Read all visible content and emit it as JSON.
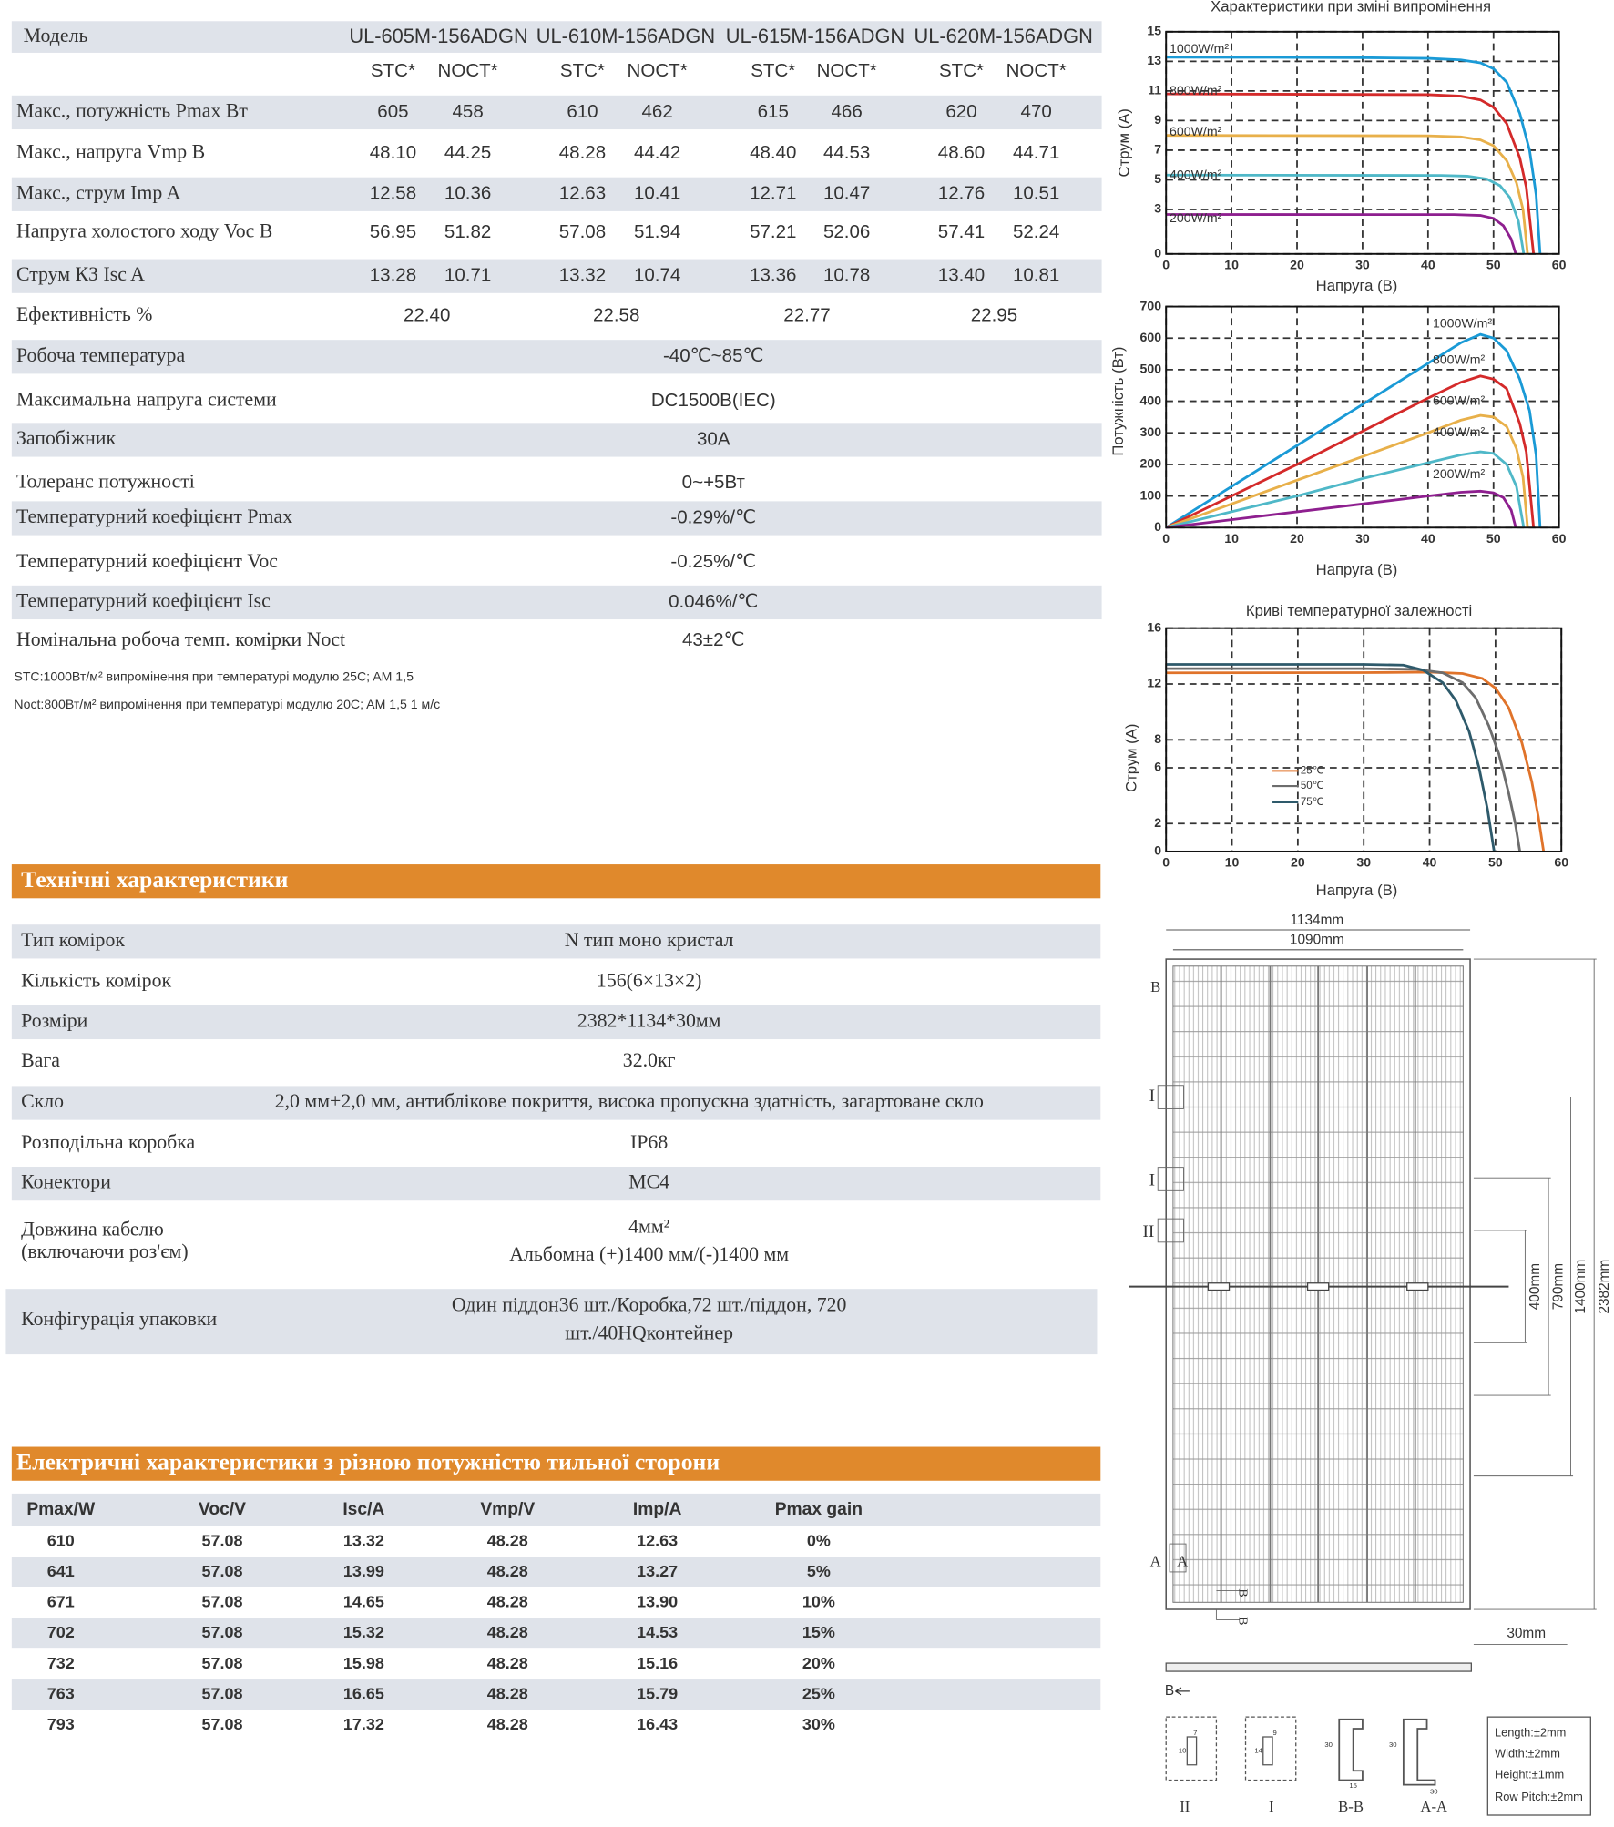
{
  "specs": {
    "header": [
      "Модель",
      "UL-605M-156ADGN",
      "UL-610M-156ADGN",
      "UL-615M-156ADGN",
      "UL-620M-156ADGN"
    ],
    "subheader": [
      "STC*",
      "NOCT*",
      "STC*",
      "NOCT*",
      "STC*",
      "NOCT*",
      "STC*",
      "NOCT*"
    ],
    "rows": [
      {
        "label": "Макс., потужність Pmax Вт",
        "values": [
          "605",
          "458",
          "610",
          "462",
          "615",
          "466",
          "620",
          "470"
        ]
      },
      {
        "label": "Макс., напруга Vmp В",
        "values": [
          "48.10",
          "44.25",
          "48.28",
          "44.42",
          "48.40",
          "44.53",
          "48.60",
          "44.71"
        ]
      },
      {
        "label": "Макс., струм Imp A",
        "values": [
          "12.58",
          "10.36",
          "12.63",
          "10.41",
          "12.71",
          "10.47",
          "12.76",
          "10.51"
        ]
      },
      {
        "label": "Напруга холостого ходу Voc В",
        "values": [
          "56.95",
          "51.82",
          "57.08",
          "51.94",
          "57.21",
          "52.06",
          "57.41",
          "52.24"
        ]
      },
      {
        "label": "Струм КЗ Isc  A",
        "values": [
          "13.28",
          "10.71",
          "13.32",
          "10.74",
          "13.36",
          "10.78",
          "13.40",
          "10.81"
        ]
      },
      {
        "label": "Ефективність   %",
        "values": [
          "22.40",
          "22.58",
          "22.77",
          "22.95"
        ]
      },
      {
        "label": "Робоча температура",
        "values": [
          "-40℃~85℃"
        ]
      },
      {
        "label": "Максимальна напруга системи",
        "values": [
          "DC1500В(IEC)"
        ]
      },
      {
        "label": "Запобіжник",
        "values": [
          "30А"
        ]
      },
      {
        "label": "Толеранс потужності",
        "values": [
          "0~+5Вт"
        ]
      },
      {
        "label": "Температурний коефіцієнт Pmax",
        "values": [
          "-0.29%/℃"
        ]
      },
      {
        "label": "Температурний коефіцієнт Voc",
        "values": [
          "-0.25%/℃"
        ]
      },
      {
        "label": "Температурний коефіцієнт Isc",
        "values": [
          "0.046%/℃"
        ]
      },
      {
        "label": "Номінальна робоча темп. комірки Noct",
        "values": [
          "43±2℃"
        ]
      }
    ],
    "notes": [
      "STC:1000Вт/м² випромінення при температурі модулю 25C; AM 1,5",
      "Noct:800Вт/м² випромінення при температурі модулю 20C; AM 1,5 1 м/с"
    ]
  },
  "tech": {
    "title": "Технічні характеристики",
    "rows": [
      {
        "label": [
          "Тип комірок"
        ],
        "value": [
          "N тип моно кристал"
        ]
      },
      {
        "label": [
          "Кількість комірок"
        ],
        "value": [
          "156(6×13×2)"
        ]
      },
      {
        "label": [
          "Розміри"
        ],
        "value": [
          "2382*1134*30мм"
        ]
      },
      {
        "label": [
          "Вага"
        ],
        "value": [
          "32.0кг"
        ]
      },
      {
        "label": [
          "Скло"
        ],
        "value": [
          "2,0 мм+2,0 мм, антиблікове покриття, висока пропускна здатність, загартоване скло"
        ]
      },
      {
        "label": [
          "Розподільна коробка"
        ],
        "value": [
          "IP68"
        ]
      },
      {
        "label": [
          "Конектори"
        ],
        "value": [
          "MC4"
        ]
      },
      {
        "label": [
          "Довжина кабелю",
          "(включаючи роз'єм)"
        ],
        "value": [
          "4мм²",
          "Альбомна (+)1400 мм/(-)1400 мм"
        ]
      },
      {
        "label": [
          "Конфігурація упаковки"
        ],
        "value": [
          "Один піддон36 шт./Коробка,72 шт./піддон, 720",
          "шт./40HQконтейнер"
        ]
      }
    ]
  },
  "electric": {
    "title": "Електричні характеристики з  різною потужністю тильної сторони",
    "columns": [
      "Pmax/W",
      "Voc/V",
      "Isc/A",
      "Vmp/V",
      "Imp/A",
      "Pmax gain"
    ],
    "rows": [
      [
        "610",
        "57.08",
        "13.32",
        "48.28",
        "12.63",
        "0%"
      ],
      [
        "641",
        "57.08",
        "13.99",
        "48.28",
        "13.27",
        "5%"
      ],
      [
        "671",
        "57.08",
        "14.65",
        "48.28",
        "13.90",
        "10%"
      ],
      [
        "702",
        "57.08",
        "15.32",
        "48.28",
        "14.53",
        "15%"
      ],
      [
        "732",
        "57.08",
        "15.98",
        "48.28",
        "15.16",
        "20%"
      ],
      [
        "763",
        "57.08",
        "16.65",
        "48.28",
        "15.79",
        "25%"
      ],
      [
        "793",
        "57.08",
        "17.32",
        "48.28",
        "16.43",
        "30%"
      ]
    ]
  },
  "charts": [
    {
      "type": "line",
      "title": "Характеристики при зміні випромінення",
      "x_label": "Напруга (В)",
      "y_label": "Струм (A)",
      "xlim": [
        0,
        60
      ],
      "xticks": [
        0,
        10,
        20,
        30,
        40,
        50,
        60
      ],
      "ylim": [
        0,
        15
      ],
      "yticks": [
        0,
        3,
        5,
        7,
        9,
        11,
        13,
        15
      ],
      "grid": true,
      "series": [
        {
          "name": "1000W/m²",
          "color": "#1a9ad6",
          "x": [
            0,
            10,
            20,
            30,
            40,
            45,
            48,
            50,
            52,
            54,
            55.5,
            56.5,
            57.1
          ],
          "values": [
            13.28,
            13.27,
            13.26,
            13.25,
            13.2,
            13.1,
            12.9,
            12.5,
            11.6,
            9.5,
            7,
            4,
            0
          ]
        },
        {
          "name": "800W/m²",
          "color": "#d42a2a",
          "x": [
            0,
            40,
            45,
            48,
            50,
            52,
            54,
            55,
            56.1
          ],
          "values": [
            10.8,
            10.75,
            10.65,
            10.4,
            9.9,
            8.8,
            6.5,
            4.5,
            0
          ]
        },
        {
          "name": "600W/m²",
          "color": "#e8b04a",
          "x": [
            0,
            40,
            45,
            48,
            50,
            52,
            53.5,
            54.5,
            55.2
          ],
          "values": [
            8.0,
            7.97,
            7.9,
            7.7,
            7.3,
            6.3,
            4.8,
            3,
            0
          ]
        },
        {
          "name": "400W/m²",
          "color": "#4fb8c8",
          "x": [
            0,
            42,
            46,
            49,
            51,
            52.5,
            53.8,
            54.6
          ],
          "values": [
            5.32,
            5.3,
            5.25,
            5.05,
            4.6,
            3.8,
            2.2,
            0
          ]
        },
        {
          "name": "200W/m²",
          "color": "#8e1f8f",
          "x": [
            0,
            44,
            48,
            50,
            51.5,
            52.7,
            53.4
          ],
          "values": [
            2.66,
            2.65,
            2.6,
            2.4,
            1.9,
            1.0,
            0
          ]
        }
      ]
    },
    {
      "type": "line",
      "x_label": "Напруга (В)",
      "y_label": "Потужність (Вт)",
      "xlim": [
        0,
        60
      ],
      "xticks": [
        0,
        10,
        20,
        30,
        40,
        50,
        60
      ],
      "ylim": [
        0,
        700
      ],
      "yticks": [
        0,
        100,
        200,
        300,
        400,
        500,
        600,
        700
      ],
      "grid": true,
      "series": [
        {
          "name": "1000W/m²",
          "color": "#1a9ad6",
          "x": [
            0,
            10,
            20,
            30,
            40,
            45,
            48,
            50,
            52,
            54,
            55.5,
            56.5,
            57.1
          ],
          "values": [
            0,
            130,
            260,
            390,
            520,
            585,
            612,
            600,
            560,
            470,
            370,
            230,
            0
          ]
        },
        {
          "name": "800W/m²",
          "color": "#d42a2a",
          "x": [
            0,
            10,
            20,
            30,
            40,
            45,
            48,
            50,
            52,
            54,
            55,
            56.1
          ],
          "values": [
            0,
            100,
            200,
            305,
            410,
            460,
            480,
            470,
            440,
            330,
            240,
            0
          ]
        },
        {
          "name": "600W/m²",
          "color": "#e8b04a",
          "x": [
            0,
            10,
            20,
            30,
            40,
            45,
            48,
            50,
            52,
            53.5,
            54.5,
            55.2
          ],
          "values": [
            0,
            75,
            150,
            225,
            300,
            340,
            355,
            350,
            320,
            250,
            160,
            0
          ]
        },
        {
          "name": "400W/m²",
          "color": "#4fb8c8",
          "x": [
            0,
            10,
            20,
            30,
            40,
            45,
            48,
            50,
            52,
            53.5,
            54.6
          ],
          "values": [
            0,
            50,
            100,
            155,
            205,
            230,
            240,
            235,
            200,
            130,
            0
          ]
        },
        {
          "name": "200W/m²",
          "color": "#8e1f8f",
          "x": [
            0,
            10,
            20,
            30,
            40,
            45,
            48,
            50,
            51.5,
            52.7,
            53.4
          ],
          "values": [
            0,
            25,
            50,
            75,
            100,
            112,
            115,
            110,
            95,
            55,
            0
          ]
        }
      ]
    },
    {
      "type": "line",
      "title": "Криві температурної залежності",
      "x_label": "Напруга (В)",
      "y_label": "Струм (A)",
      "xlim": [
        0,
        60
      ],
      "xticks": [
        0,
        10,
        20,
        30,
        40,
        50,
        60
      ],
      "ylim": [
        0,
        16
      ],
      "yticks": [
        0,
        2,
        6,
        8,
        12,
        16
      ],
      "grid": true,
      "series": [
        {
          "name": "25℃",
          "color": "#e0732a",
          "x": [
            0,
            30,
            40,
            45,
            48,
            50,
            52,
            54,
            55.5,
            56.5,
            57.3
          ],
          "values": [
            12.8,
            12.82,
            12.85,
            12.75,
            12.4,
            11.7,
            10.3,
            7.8,
            5,
            2.5,
            0
          ]
        },
        {
          "name": "50℃",
          "color": "#6d6d6d",
          "x": [
            0,
            30,
            38,
            42,
            45,
            47,
            49,
            50.5,
            52,
            53,
            53.7
          ],
          "values": [
            13.1,
            13.1,
            13.05,
            12.8,
            12.1,
            11,
            9,
            7,
            4.2,
            2,
            0
          ]
        },
        {
          "name": "75℃",
          "color": "#2e5a6b",
          "x": [
            0,
            30,
            36,
            39,
            42,
            44,
            46,
            47.5,
            48.8,
            49.8
          ],
          "values": [
            13.4,
            13.4,
            13.35,
            13,
            12.1,
            10.8,
            8.6,
            6,
            3,
            0
          ]
        }
      ]
    }
  ],
  "drawing": {
    "width_outer": "1134mm",
    "width_inner": "1090mm",
    "heights": [
      "400mm",
      "790mm",
      "1400mm",
      "2382mm"
    ],
    "thickness": "30mm",
    "marks": [
      "B",
      "I",
      "I",
      "II",
      "A",
      "A",
      "B",
      "B",
      "B"
    ],
    "detail_numbers": [
      "7",
      "10",
      "9",
      "14",
      "30",
      "15",
      "30",
      "30"
    ],
    "details": [
      "II",
      "I",
      "B-B",
      "A-A"
    ],
    "tolerances": [
      "Length:±2mm",
      "Width:±2mm",
      "Height:±1mm",
      "Row Pitch:±2mm"
    ]
  }
}
